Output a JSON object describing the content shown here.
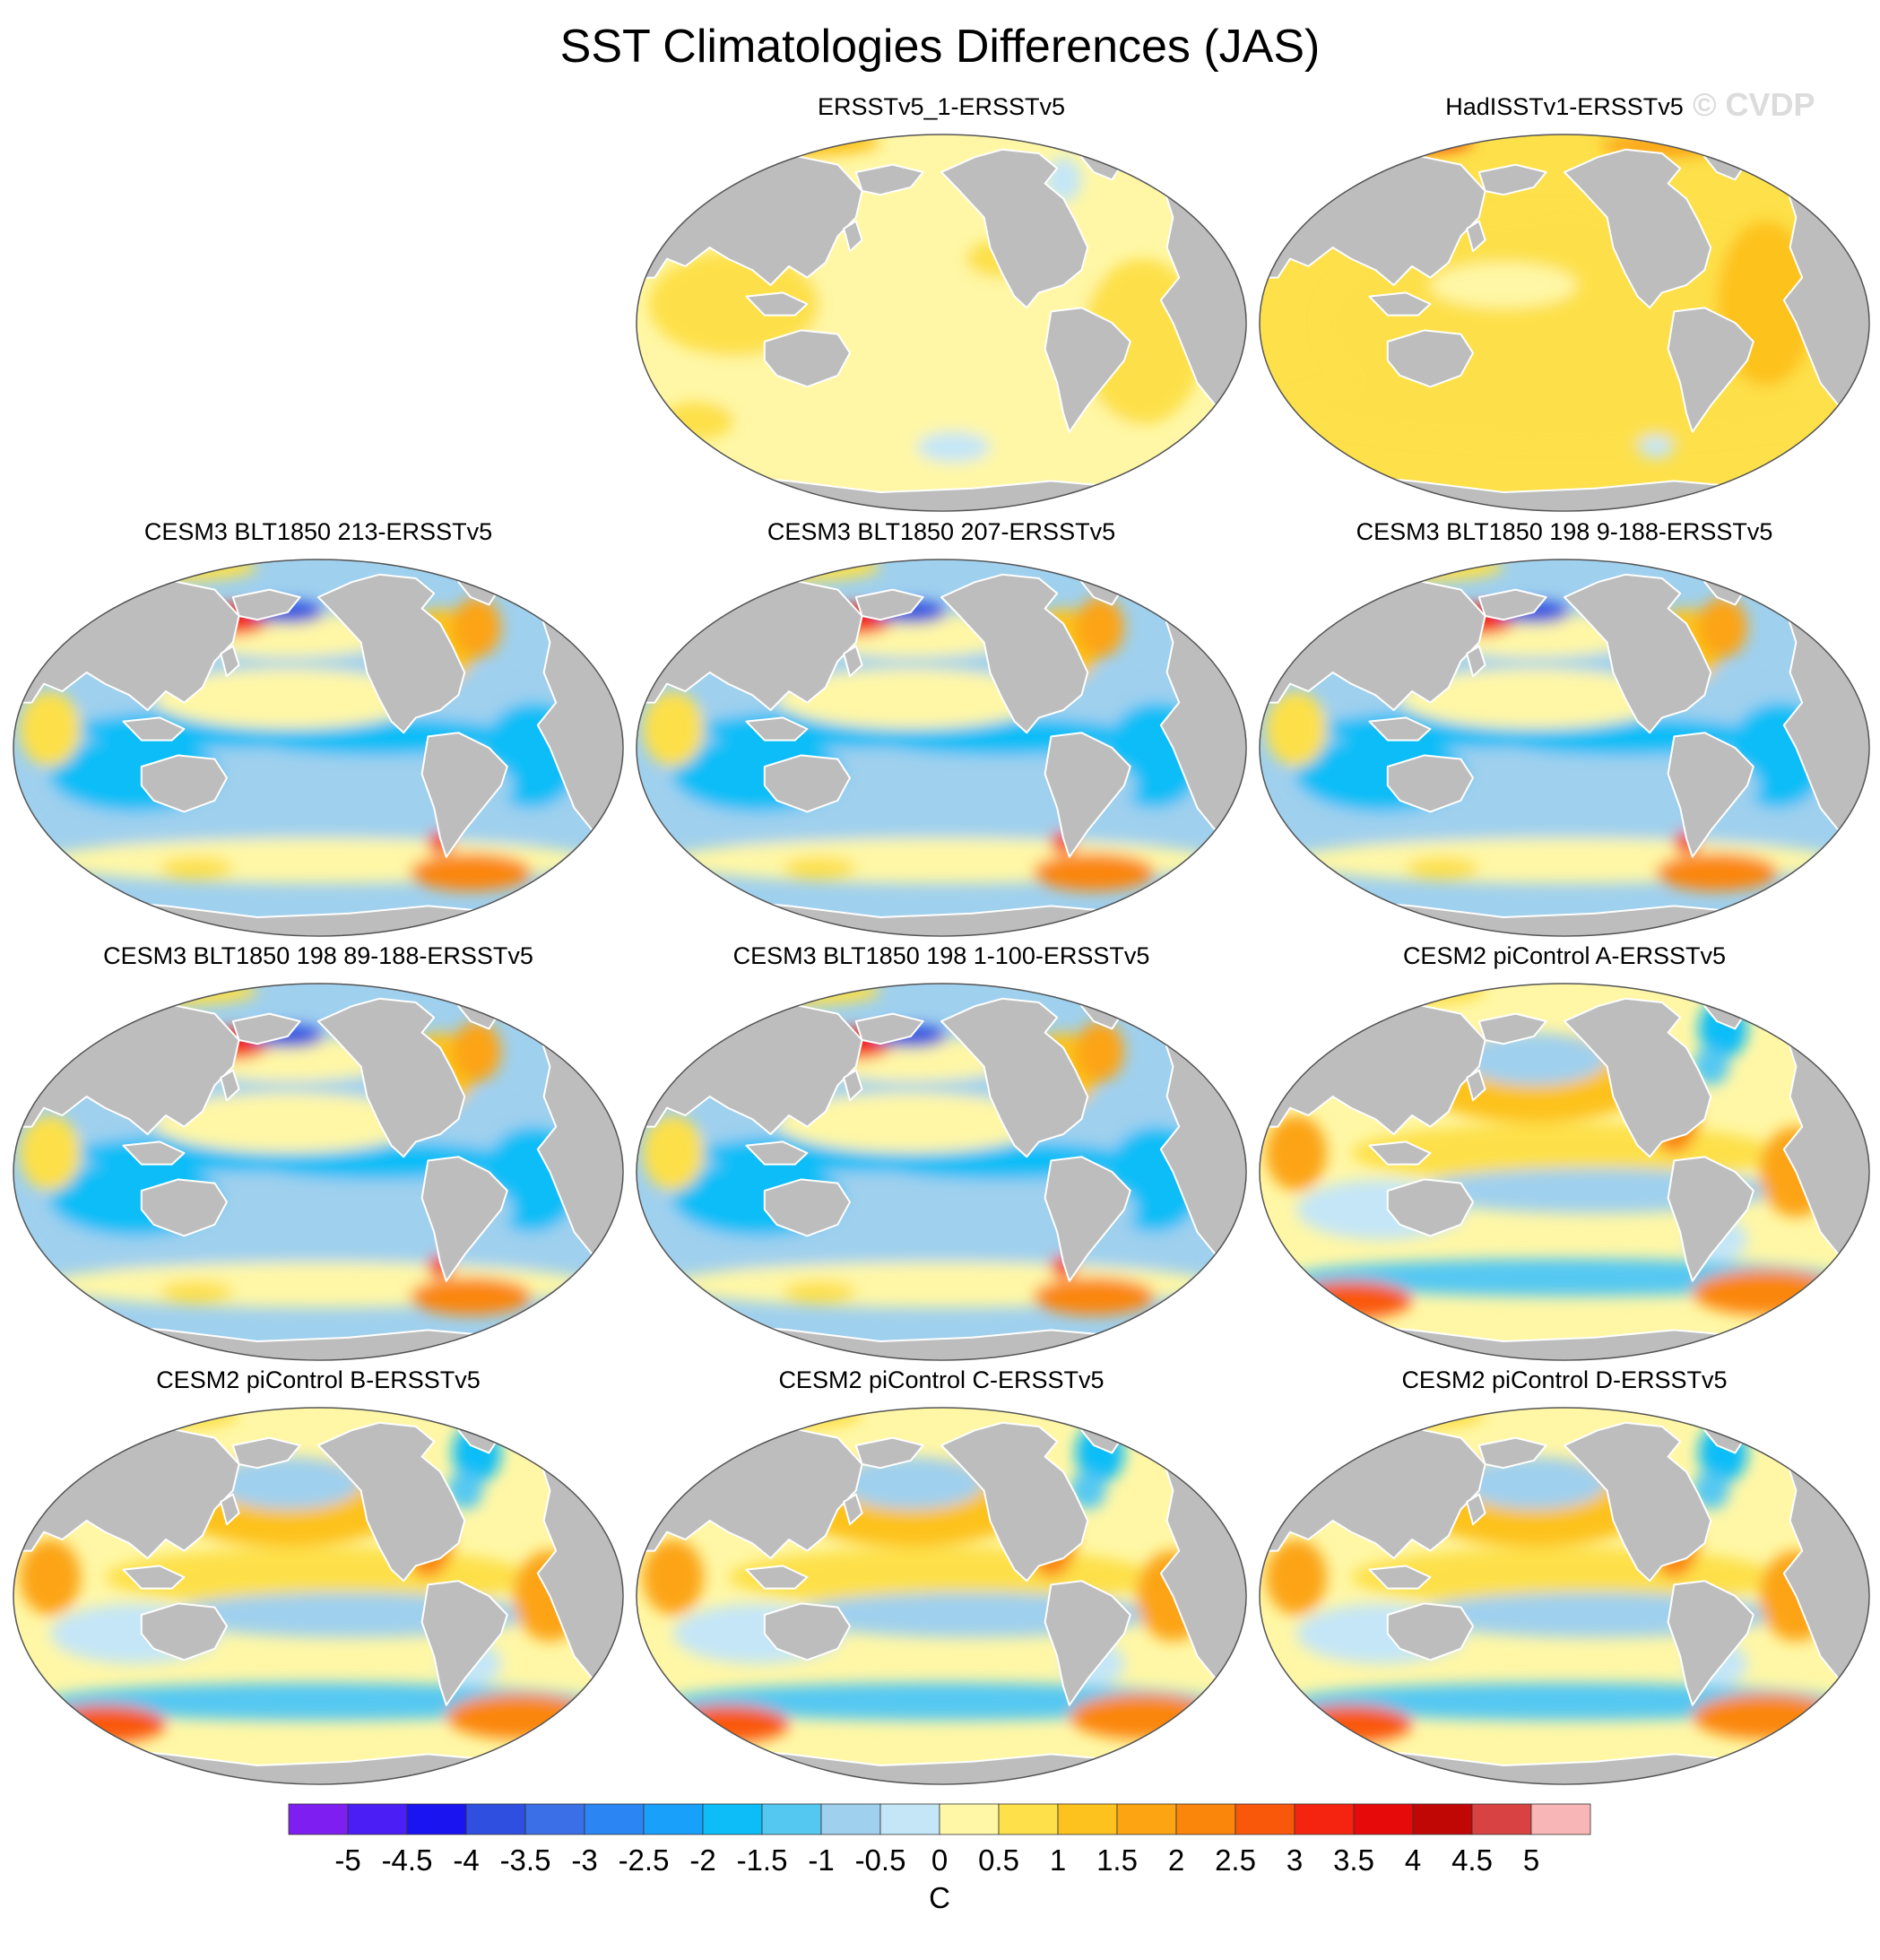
{
  "figure": {
    "title": "SST Climatologies Differences (JAS)",
    "watermark": "© CVDP",
    "units": "C"
  },
  "colors": {
    "land": "#bdbdbd",
    "coast": "#ffffff",
    "frame": "#555555",
    "watermark": "#dcdcdc"
  },
  "panels": [
    {
      "title": "ERSSTv5_1-ERSSTv5",
      "pattern": "obs_small"
    },
    {
      "title": "HadISSTv1-ERSSTv5",
      "pattern": "obs_warm"
    },
    {
      "title": "CESM3 BLT1850 213-ERSSTv5",
      "pattern": "cesm3"
    },
    {
      "title": "CESM3 BLT1850 207-ERSSTv5",
      "pattern": "cesm3"
    },
    {
      "title": "CESM3 BLT1850 198 9-188-ERSSTv5",
      "pattern": "cesm3"
    },
    {
      "title": "CESM3 BLT1850 198 89-188-ERSSTv5",
      "pattern": "cesm3"
    },
    {
      "title": "CESM3 BLT1850 198 1-100-ERSSTv5",
      "pattern": "cesm3"
    },
    {
      "title": "CESM2 piControl A-ERSSTv5",
      "pattern": "cesm2"
    },
    {
      "title": "CESM2 piControl B-ERSSTv5",
      "pattern": "cesm2"
    },
    {
      "title": "CESM2 piControl C-ERSSTv5",
      "pattern": "cesm2"
    },
    {
      "title": "CESM2 piControl D-ERSSTv5",
      "pattern": "cesm2"
    }
  ],
  "colorbar": {
    "labels": [
      "-5",
      "-4.5",
      "-4",
      "-3.5",
      "-3",
      "-2.5",
      "-2",
      "-1.5",
      "-1",
      "-0.5",
      "0",
      "0.5",
      "1",
      "1.5",
      "2",
      "2.5",
      "3",
      "3.5",
      "4",
      "4.5",
      "5"
    ],
    "colors": [
      "#7f1ef0",
      "#4a1ef5",
      "#1a14f0",
      "#2f4fe0",
      "#3a6fe8",
      "#2b85f2",
      "#19a0fb",
      "#0dbdf7",
      "#55c8f2",
      "#9fd0ee",
      "#c4e6f7",
      "#fff7a6",
      "#fde04a",
      "#fdc21e",
      "#fca412",
      "#fb860c",
      "#f9580a",
      "#f52410",
      "#e60a0a",
      "#c10606",
      "#d94242",
      "#f9b6b6"
    ]
  }
}
